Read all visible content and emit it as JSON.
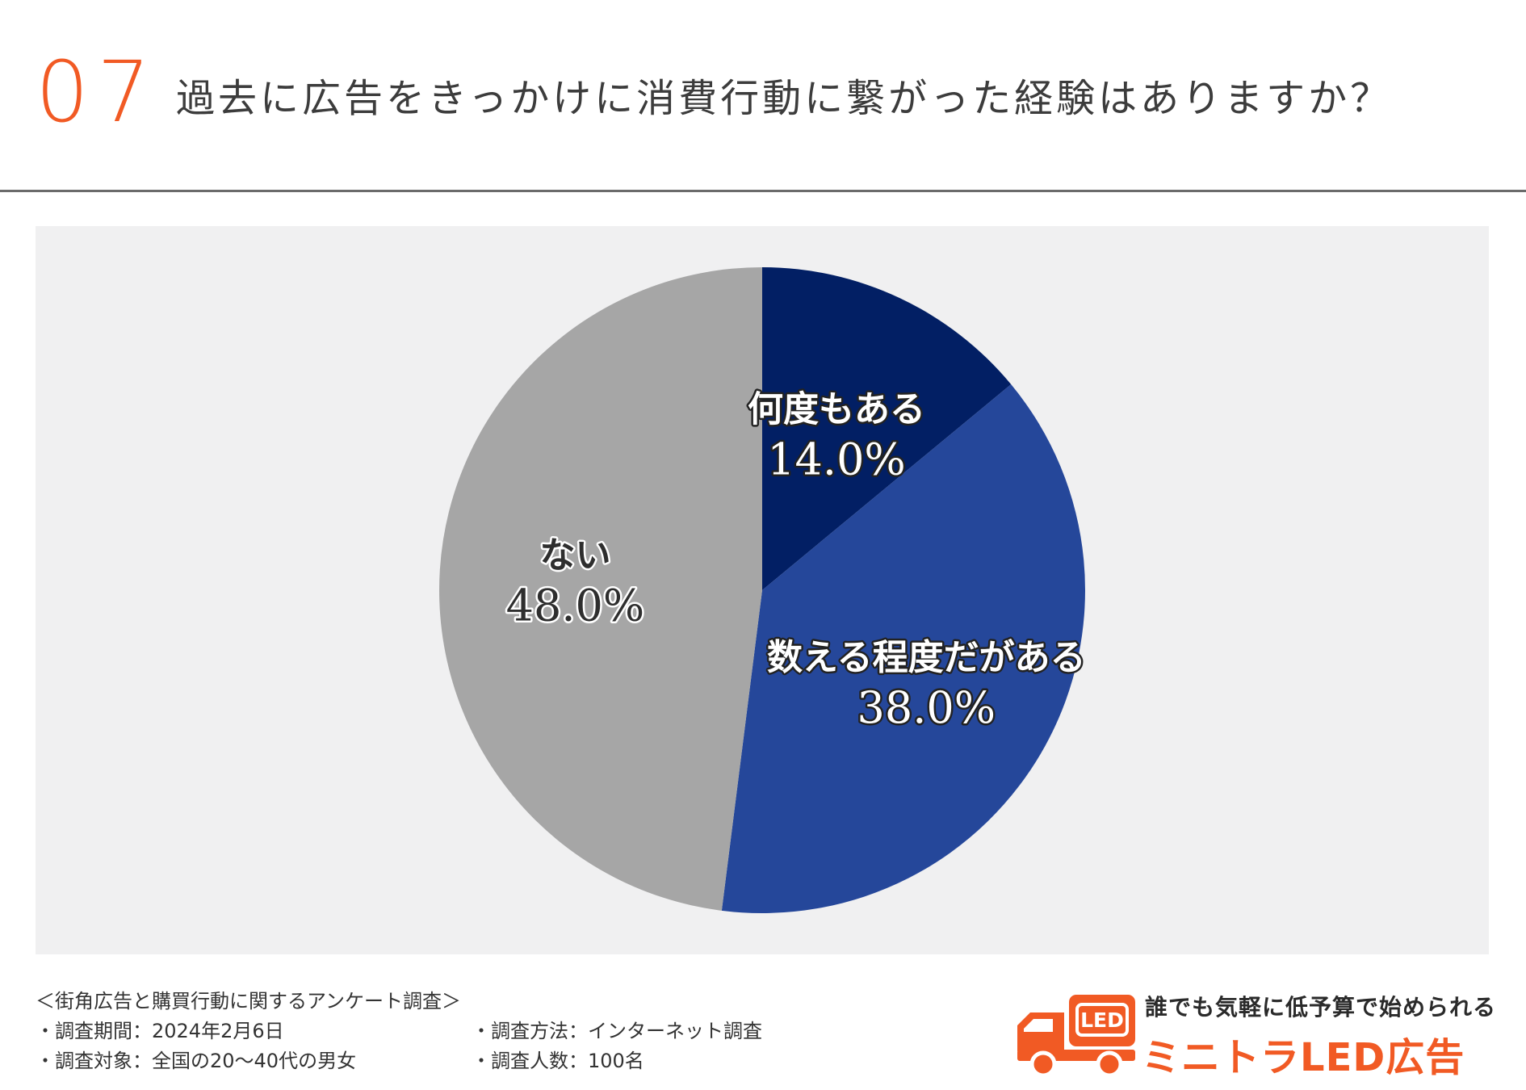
{
  "header": {
    "question_number": "07",
    "question_text": "過去に広告をきっかけに消費行動に繋がった経験はありますか？"
  },
  "colors": {
    "accent": "#f15a24",
    "panel_background": "#f0f0f1"
  },
  "chart_data": {
    "type": "pie",
    "start_angle_deg": 0,
    "direction": "clockwise",
    "slices": [
      {
        "label": "何度もある",
        "value": 14.0,
        "value_text": "14.0%",
        "color": "#021f64",
        "label_style": "light"
      },
      {
        "label": "数える程度だがある",
        "value": 38.0,
        "value_text": "38.0%",
        "color": "#25479a",
        "label_style": "light"
      },
      {
        "label": "ない",
        "value": 48.0,
        "value_text": "48.0%",
        "color": "#a6a6a6",
        "label_style": "dark"
      }
    ]
  },
  "footer": {
    "survey_title": "＜街角広告と購買行動に関するアンケート調査＞",
    "survey_period": "・調査期間：2024年2月6日",
    "survey_method": "・調査方法：インターネット調査",
    "survey_target": "・調査対象：全国の20～40代の男女",
    "survey_count": "・調査人数：100名"
  },
  "brand": {
    "tagline": "誰でも気軽に低予算で始められる",
    "name": "ミニトラLED広告",
    "logo_badge": "LED",
    "logo_icon": "truck-icon"
  }
}
